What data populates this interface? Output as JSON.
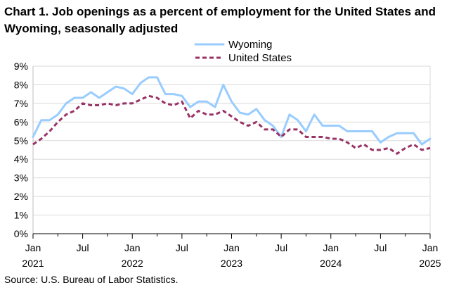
{
  "chart_data": {
    "type": "line",
    "title": "Chart 1. Job openings as a percent of employment for the United States and Wyoming, seasonally adjusted",
    "source": "Source: U.S. Bureau of Labor Statistics.",
    "ylim": [
      0,
      9
    ],
    "yticks": [
      "0%",
      "1%",
      "2%",
      "3%",
      "4%",
      "5%",
      "6%",
      "7%",
      "8%",
      "9%"
    ],
    "xticks": [
      {
        "index": 0,
        "month": "Jan",
        "year": "2021"
      },
      {
        "index": 6,
        "month": "Jul",
        "year": ""
      },
      {
        "index": 12,
        "month": "Jan",
        "year": "2022"
      },
      {
        "index": 18,
        "month": "Jul",
        "year": ""
      },
      {
        "index": 24,
        "month": "Jan",
        "year": "2023"
      },
      {
        "index": 30,
        "month": "Jul",
        "year": ""
      },
      {
        "index": 36,
        "month": "Jan",
        "year": "2024"
      },
      {
        "index": 42,
        "month": "Jul",
        "year": ""
      },
      {
        "index": 48,
        "month": "Jan",
        "year": "2025"
      }
    ],
    "x_count": 49,
    "series": [
      {
        "name": "Wyoming",
        "color": "#99ccff",
        "style": "solid",
        "values": [
          5.2,
          6.1,
          6.1,
          6.4,
          7.0,
          7.3,
          7.3,
          7.6,
          7.3,
          7.6,
          7.9,
          7.8,
          7.5,
          8.1,
          8.4,
          8.4,
          7.5,
          7.5,
          7.4,
          6.8,
          7.1,
          7.1,
          6.8,
          8.0,
          7.1,
          6.5,
          6.4,
          6.7,
          6.1,
          5.8,
          5.2,
          6.4,
          6.1,
          5.5,
          6.4,
          5.8,
          5.8,
          5.8,
          5.5,
          5.5,
          5.5,
          5.5,
          4.9,
          5.2,
          5.4,
          5.4,
          5.4,
          4.8,
          5.1
        ]
      },
      {
        "name": "United States",
        "color": "#993366",
        "style": "dashed",
        "values": [
          4.8,
          5.1,
          5.5,
          6.0,
          6.4,
          6.6,
          7.0,
          6.9,
          6.9,
          7.0,
          6.9,
          7.0,
          7.0,
          7.2,
          7.4,
          7.3,
          7.0,
          6.9,
          7.1,
          6.2,
          6.6,
          6.4,
          6.4,
          6.6,
          6.3,
          6.0,
          5.8,
          6.0,
          5.6,
          5.6,
          5.2,
          5.6,
          5.6,
          5.2,
          5.2,
          5.2,
          5.1,
          5.1,
          4.9,
          4.6,
          4.8,
          4.5,
          4.5,
          4.6,
          4.3,
          4.6,
          4.8,
          4.5,
          4.6
        ]
      }
    ]
  }
}
